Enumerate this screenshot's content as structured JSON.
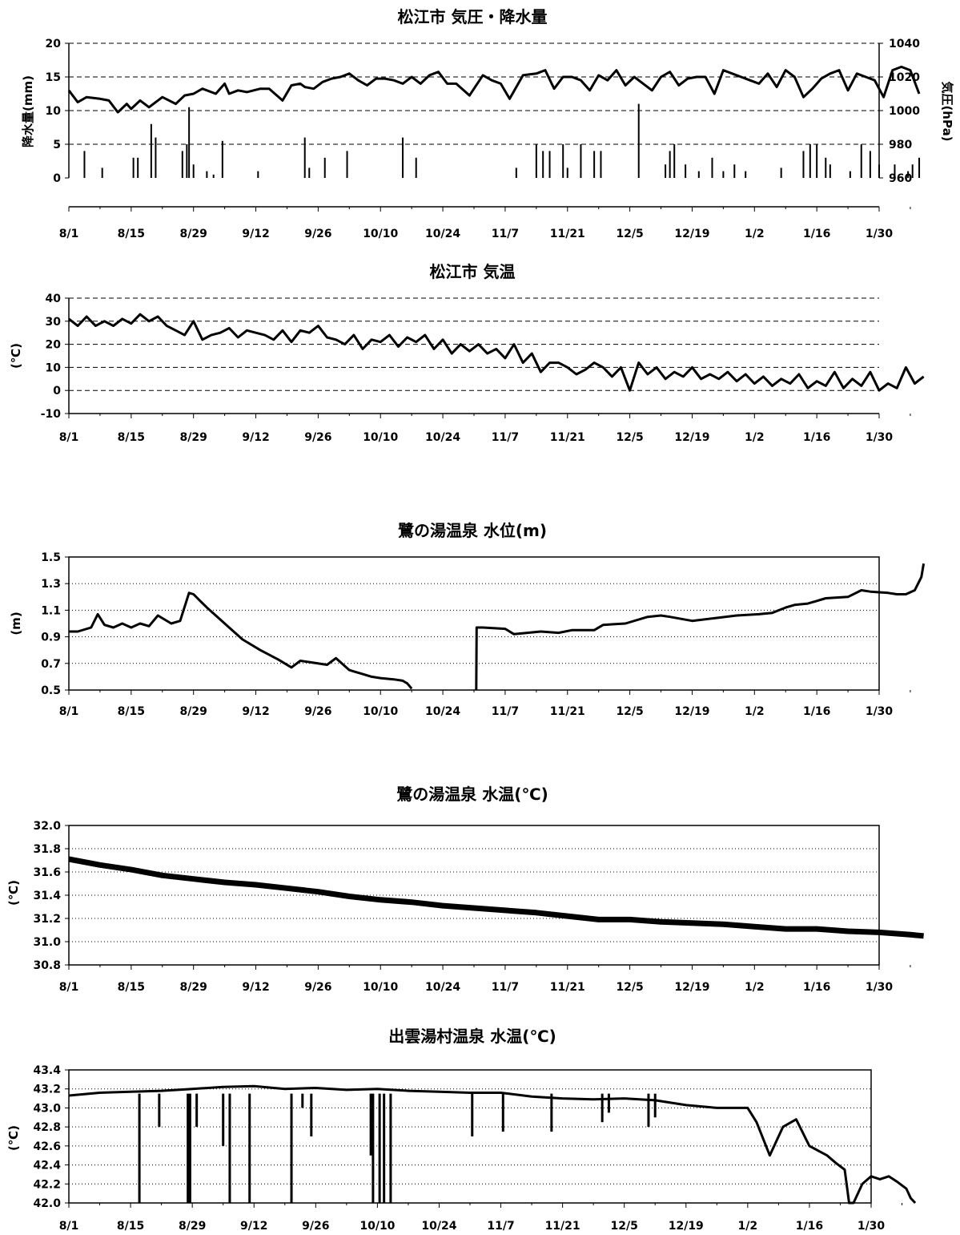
{
  "x_tick_labels": [
    "8/1",
    "8/15",
    "8/29",
    "9/12",
    "9/26",
    "10/10",
    "10/24",
    "11/7",
    "11/21",
    "12/5",
    "12/19",
    "1/2",
    "1/16",
    "1/30"
  ],
  "chart_data": [
    {
      "type": "line",
      "title": "松江市 気圧・降水量",
      "ylabel": "降水量(mm)",
      "y2label": "気圧(hPa)",
      "ylim": [
        0,
        20
      ],
      "y2lim": [
        960,
        1040
      ],
      "yticks": [
        0,
        5,
        10,
        15,
        20
      ],
      "y2ticks": [
        960,
        980,
        1000,
        1020,
        1040
      ],
      "grid": "dashed",
      "series": [
        {
          "kind": "line",
          "axis": "right",
          "x": [
            0,
            4,
            8,
            14,
            18,
            22,
            26,
            28,
            32,
            36,
            42,
            48,
            52,
            56,
            60,
            66,
            70,
            72,
            76,
            80,
            86,
            90,
            96,
            100,
            104,
            106,
            110,
            114,
            118,
            122,
            126,
            130,
            134,
            138,
            142,
            146,
            150,
            154,
            158,
            162,
            166,
            170,
            174,
            180,
            186,
            190,
            194,
            198,
            204,
            210,
            214,
            218,
            222,
            226,
            230,
            234,
            238,
            242,
            246,
            250,
            254,
            258,
            262,
            266,
            270,
            274,
            278,
            282,
            286,
            290,
            294,
            298,
            302,
            306,
            310,
            314,
            318,
            322,
            326,
            330,
            334,
            338,
            342,
            346,
            350,
            354,
            358,
            362,
            366,
            370,
            374,
            378,
            382
          ],
          "values": [
            1012,
            1005,
            1008,
            1007,
            1006,
            999,
            1004,
            1001,
            1006,
            1002,
            1008,
            1004,
            1009,
            1010,
            1013,
            1010,
            1016,
            1010,
            1012,
            1011,
            1013,
            1013,
            1006,
            1015,
            1016,
            1014,
            1013,
            1017,
            1019,
            1020,
            1022,
            1018,
            1015,
            1019,
            1019,
            1018,
            1016,
            1020,
            1016,
            1021,
            1023,
            1016,
            1016,
            1009,
            1021,
            1018,
            1016,
            1007,
            1021,
            1022,
            1024,
            1013,
            1020,
            1020,
            1018,
            1012,
            1021,
            1018,
            1024,
            1015,
            1020,
            1016,
            1012,
            1020,
            1023,
            1015,
            1019,
            1020,
            1020,
            1010,
            1024,
            1022,
            1020,
            1018,
            1016,
            1022,
            1014,
            1024,
            1020,
            1008,
            1013,
            1019,
            1022,
            1024,
            1012,
            1022,
            1020,
            1018,
            1008,
            1024,
            1026,
            1024,
            1010
          ]
        },
        {
          "kind": "bar",
          "axis": "left",
          "x": [
            7,
            15,
            29,
            31,
            37,
            39,
            51,
            53,
            54,
            56,
            62,
            65,
            69,
            85,
            106,
            108,
            115,
            125,
            150,
            156,
            201,
            210,
            213,
            216,
            222,
            224,
            230,
            239,
            236,
            256,
            270,
            268,
            272,
            277,
            283,
            289,
            294,
            299,
            304,
            320,
            330,
            333,
            336,
            340,
            342,
            351,
            356,
            360,
            364,
            371,
            377,
            379,
            382
          ],
          "values": [
            4,
            1.5,
            3,
            3,
            8,
            6,
            4,
            5,
            10.5,
            2,
            1,
            0.5,
            5.5,
            1,
            6,
            1.5,
            3,
            4,
            6,
            3,
            1.5,
            5,
            4,
            4,
            5,
            1.5,
            5,
            4,
            4,
            11,
            4,
            2,
            5,
            2,
            1,
            3,
            1,
            2,
            1,
            1.5,
            4,
            5,
            5,
            3,
            2,
            1,
            5,
            4,
            2,
            2,
            1,
            2,
            3
          ]
        }
      ]
    },
    {
      "type": "line",
      "title": "松江市 気温",
      "ylabel": "(℃)",
      "ylim": [
        -10,
        40
      ],
      "yticks": [
        -10,
        0,
        10,
        20,
        30,
        40
      ],
      "grid": "dashed",
      "series": [
        {
          "x": [
            0,
            4,
            8,
            12,
            16,
            20,
            24,
            28,
            32,
            36,
            40,
            44,
            48,
            52,
            56,
            60,
            64,
            68,
            72,
            76,
            80,
            84,
            88,
            92,
            96,
            100,
            104,
            108,
            112,
            116,
            120,
            124,
            128,
            132,
            136,
            140,
            144,
            148,
            152,
            156,
            160,
            164,
            168,
            172,
            176,
            180,
            184,
            188,
            192,
            196,
            200,
            204,
            208,
            212,
            216,
            220,
            224,
            228,
            232,
            236,
            240,
            244,
            248,
            252,
            256,
            260,
            264,
            268,
            272,
            276,
            280,
            284,
            288,
            292,
            296,
            300,
            304,
            308,
            312,
            316,
            320,
            324,
            328,
            332,
            336,
            340,
            344,
            348,
            352,
            356,
            360,
            364,
            368,
            372,
            376,
            380,
            384
          ],
          "values": [
            31,
            28,
            32,
            28,
            30,
            28,
            31,
            29,
            33,
            30,
            32,
            28,
            26,
            24,
            30,
            22,
            24,
            25,
            27,
            23,
            26,
            25,
            24,
            22,
            26,
            21,
            26,
            25,
            28,
            23,
            22,
            20,
            24,
            18,
            22,
            21,
            24,
            19,
            23,
            21,
            24,
            18,
            22,
            16,
            20,
            17,
            20,
            16,
            18,
            14,
            20,
            12,
            16,
            8,
            12,
            12,
            10,
            7,
            9,
            12,
            10,
            6,
            10,
            0,
            12,
            7,
            10,
            5,
            8,
            6,
            10,
            5,
            7,
            5,
            8,
            4,
            7,
            3,
            6,
            2,
            5,
            3,
            7,
            1,
            4,
            2,
            8,
            1,
            5,
            2,
            8,
            0,
            3,
            1,
            10,
            3,
            6
          ]
        }
      ]
    },
    {
      "type": "line",
      "title": "鷺の湯温泉 水位(m)",
      "ylabel": "(m)",
      "ylim": [
        0.5,
        1.5
      ],
      "yticks": [
        0.5,
        0.7,
        0.9,
        1.1,
        1.3,
        1.5
      ],
      "yticklabels": [
        "0.5",
        "0.7",
        "0.9",
        "1.1",
        "1.3",
        "1.5"
      ],
      "grid": "dotted",
      "series": [
        {
          "x": [
            0,
            4,
            10,
            13,
            16,
            20,
            24,
            28,
            32,
            36,
            40,
            42,
            46,
            50,
            54,
            56,
            59,
            62,
            66,
            72,
            78,
            86,
            94,
            100,
            104,
            108,
            116,
            120,
            126,
            128,
            132,
            136,
            140,
            146,
            150,
            152,
            154
          ],
          "values": [
            0.94,
            0.94,
            0.97,
            1.07,
            0.99,
            0.97,
            1.0,
            0.97,
            1.0,
            0.98,
            1.06,
            1.04,
            1.0,
            1.02,
            1.23,
            1.22,
            1.17,
            1.12,
            1.06,
            0.97,
            0.88,
            0.8,
            0.73,
            0.67,
            0.72,
            0.71,
            0.69,
            0.74,
            0.65,
            0.64,
            0.62,
            0.6,
            0.59,
            0.58,
            0.57,
            0.55,
            0.51
          ]
        },
        {
          "x": [
            183,
            183.2,
            186,
            196,
            200,
            206,
            212,
            220,
            226,
            236,
            240,
            250,
            260,
            266,
            270,
            280,
            290,
            300,
            310,
            316,
            322,
            326,
            332,
            340,
            350,
            356,
            360,
            368,
            372,
            376,
            380,
            383,
            384
          ],
          "values": [
            0.5,
            0.97,
            0.97,
            0.96,
            0.92,
            0.93,
            0.94,
            0.93,
            0.95,
            0.95,
            0.99,
            1.0,
            1.05,
            1.06,
            1.05,
            1.02,
            1.04,
            1.06,
            1.07,
            1.08,
            1.12,
            1.14,
            1.15,
            1.19,
            1.2,
            1.25,
            1.24,
            1.23,
            1.22,
            1.22,
            1.25,
            1.35,
            1.45
          ]
        }
      ]
    },
    {
      "type": "line",
      "title": "鷺の湯温泉 水温(℃)",
      "ylabel": "(℃)",
      "ylim": [
        30.8,
        32.0
      ],
      "yticks": [
        30.8,
        31.0,
        31.2,
        31.4,
        31.6,
        31.8,
        32.0
      ],
      "yticklabels": [
        "30.8",
        "31.0",
        "31.2",
        "31.4",
        "31.6",
        "31.8",
        "32.0"
      ],
      "grid": "dotted",
      "series": [
        {
          "x": [
            0,
            14,
            28,
            42,
            56,
            70,
            84,
            98,
            112,
            126,
            140,
            154,
            168,
            182,
            196,
            210,
            224,
            238,
            252,
            266,
            280,
            294,
            308,
            322,
            336,
            350,
            364,
            378,
            384
          ],
          "values": [
            31.71,
            31.66,
            31.62,
            31.57,
            31.54,
            31.51,
            31.49,
            31.46,
            31.43,
            31.39,
            31.36,
            31.34,
            31.31,
            31.29,
            31.27,
            31.25,
            31.22,
            31.19,
            31.19,
            31.17,
            31.16,
            31.15,
            31.13,
            31.11,
            31.11,
            31.09,
            31.08,
            31.06,
            31.05
          ]
        }
      ]
    },
    {
      "type": "line",
      "title": "出雲湯村温泉 水温(℃)",
      "ylabel": "(℃)",
      "ylim": [
        42.0,
        43.4
      ],
      "yticks": [
        42.0,
        42.2,
        42.4,
        42.6,
        42.8,
        43.0,
        43.2,
        43.4
      ],
      "yticklabels": [
        "42.0",
        "42.2",
        "42.4",
        "42.6",
        "42.8",
        "43.0",
        "43.2",
        "43.4"
      ],
      "grid": "dotted",
      "series": [
        {
          "x": [
            0,
            14,
            28,
            42,
            56,
            70,
            84,
            98,
            112,
            126,
            140,
            154,
            168,
            182,
            196,
            210,
            224,
            238,
            252,
            266,
            280,
            294,
            308,
            312,
            318,
            324,
            330,
            336,
            340,
            344,
            348,
            352,
            354,
            356,
            360,
            364,
            368,
            372,
            376,
            380,
            382,
            384
          ],
          "values": [
            43.13,
            43.16,
            43.17,
            43.18,
            43.2,
            43.22,
            43.23,
            43.2,
            43.21,
            43.19,
            43.2,
            43.18,
            43.17,
            43.16,
            43.16,
            43.12,
            43.1,
            43.09,
            43.1,
            43.08,
            43.03,
            43.0,
            43.0,
            42.85,
            42.5,
            42.8,
            42.88,
            42.6,
            42.55,
            42.5,
            42.42,
            42.35,
            42.0,
            42.0,
            42.2,
            42.28,
            42.25,
            42.28,
            42.22,
            42.15,
            42.05,
            42.0
          ]
        }
      ],
      "dips_x": [
        32,
        41,
        54,
        55,
        58,
        70,
        73,
        82,
        101,
        106,
        110,
        137,
        138,
        141,
        143,
        146,
        183,
        197,
        219,
        242,
        245,
        263,
        266
      ],
      "dips_value": [
        42.0,
        42.8,
        42.0,
        42.0,
        42.8,
        42.6,
        42.0,
        42.0,
        42.0,
        43.0,
        42.7,
        42.5,
        42.0,
        42.0,
        42.0,
        42.0,
        42.7,
        42.75,
        42.75,
        42.85,
        42.95,
        42.8,
        42.9
      ]
    }
  ]
}
